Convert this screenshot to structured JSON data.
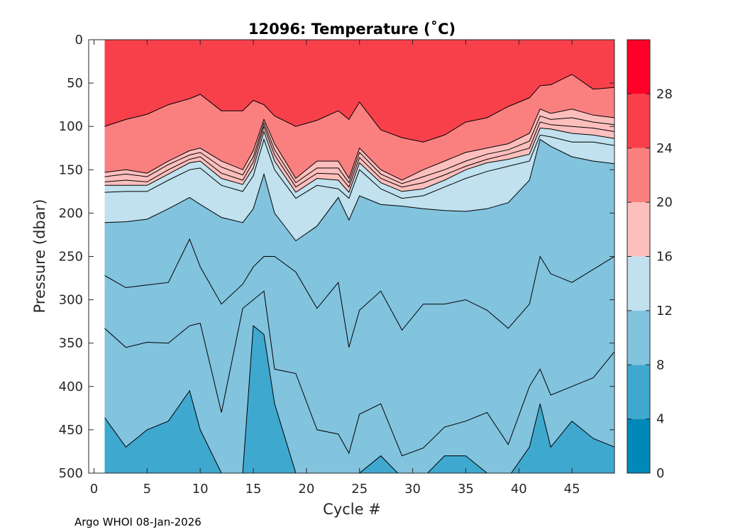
{
  "chart_data": {
    "type": "contour",
    "title": "12096:  Temperature (˚C)",
    "xlabel": "Cycle #",
    "ylabel": "Pressure (dbar)",
    "xlim": [
      -0.5,
      49
    ],
    "ylim": [
      0,
      500
    ],
    "y_reversed": true,
    "x_ticks": [
      0,
      5,
      10,
      15,
      20,
      25,
      30,
      35,
      40,
      45
    ],
    "x_tick_labels": [
      "0",
      "5",
      "10",
      "15",
      "20",
      "25",
      "30",
      "35",
      "40",
      "45"
    ],
    "y_ticks": [
      0,
      50,
      100,
      150,
      200,
      250,
      300,
      350,
      400,
      450,
      500
    ],
    "y_tick_labels": [
      "0",
      "50",
      "100",
      "150",
      "200",
      "250",
      "300",
      "350",
      "400",
      "450",
      "500"
    ],
    "colorbar": {
      "range": [
        0,
        32
      ],
      "levels": [
        0,
        4,
        8,
        12,
        16,
        20,
        24,
        28,
        32
      ],
      "colors": [
        "#0088b8",
        "#3fa8cf",
        "#82c3de",
        "#c0e1ed",
        "#fdbfbd",
        "#fa8080",
        "#f8404b",
        "#fe0028"
      ],
      "tick_values": [
        0,
        4,
        8,
        12,
        16,
        20,
        24,
        28
      ],
      "tick_labels": [
        "0",
        "4",
        "8",
        "12",
        "16",
        "20",
        "24",
        "28"
      ]
    },
    "cycles": [
      1,
      3,
      5,
      7,
      9,
      10,
      12,
      14,
      15,
      16,
      17,
      19,
      21,
      23,
      24,
      25,
      27,
      29,
      31,
      33,
      35,
      37,
      39,
      41,
      42,
      43,
      45,
      47,
      49
    ],
    "isotherms": [
      {
        "temp": 24,
        "depth": [
          100,
          92,
          86,
          75,
          68,
          63,
          82,
          82,
          70,
          75,
          88,
          100,
          93,
          82,
          92,
          72,
          104,
          113,
          118,
          110,
          95,
          90,
          77,
          67,
          53,
          52,
          40,
          57,
          55
        ]
      },
      {
        "temp": 20,
        "depth": [
          153,
          150,
          154,
          140,
          128,
          125,
          140,
          150,
          128,
          92,
          120,
          160,
          140,
          140,
          160,
          125,
          150,
          162,
          150,
          140,
          130,
          125,
          120,
          108,
          80,
          85,
          80,
          87,
          90
        ]
      },
      {
        "temp": 18,
        "depth": [
          158,
          155,
          158,
          144,
          133,
          130,
          147,
          156,
          135,
          96,
          127,
          165,
          148,
          148,
          165,
          130,
          155,
          166,
          158,
          150,
          140,
          132,
          127,
          117,
          88,
          92,
          90,
          95,
          98
        ]
      },
      {
        "temp": 17,
        "depth": [
          164,
          162,
          164,
          150,
          138,
          135,
          154,
          162,
          141,
          100,
          133,
          170,
          154,
          155,
          170,
          136,
          160,
          170,
          165,
          156,
          146,
          138,
          132,
          125,
          95,
          98,
          100,
          102,
          106
        ]
      },
      {
        "temp": 16,
        "depth": [
          168,
          168,
          168,
          155,
          142,
          140,
          160,
          167,
          148,
          106,
          140,
          176,
          160,
          162,
          176,
          142,
          165,
          175,
          172,
          162,
          150,
          142,
          138,
          132,
          102,
          103,
          108,
          110,
          114
        ]
      },
      {
        "temp": 14,
        "depth": [
          176,
          175,
          175,
          162,
          150,
          148,
          168,
          175,
          157,
          115,
          150,
          183,
          168,
          172,
          183,
          150,
          172,
          183,
          180,
          170,
          160,
          152,
          146,
          140,
          110,
          112,
          118,
          118,
          122
        ]
      },
      {
        "temp": 12,
        "depth": [
          211,
          210,
          207,
          195,
          182,
          190,
          205,
          211,
          195,
          155,
          200,
          232,
          215,
          182,
          208,
          180,
          190,
          192,
          195,
          197,
          198,
          195,
          188,
          162,
          115,
          123,
          135,
          140,
          143
        ]
      },
      {
        "temp": 10,
        "depth": [
          272,
          286,
          283,
          280,
          230,
          262,
          305,
          282,
          262,
          250,
          250,
          268,
          310,
          280,
          355,
          312,
          290,
          335,
          305,
          305,
          300,
          312,
          333,
          305,
          250,
          270,
          280,
          265,
          250
        ]
      },
      {
        "temp": 9,
        "depth": [
          333,
          355,
          349,
          350,
          330,
          327,
          430,
          310,
          300,
          290,
          380,
          385,
          450,
          455,
          477,
          432,
          420,
          480,
          471,
          447,
          440,
          430,
          467,
          400,
          380,
          410,
          400,
          390,
          360
        ]
      },
      {
        "temp": 8,
        "depth": [
          436,
          470,
          450,
          440,
          405,
          450,
          500,
          500,
          330,
          340,
          420,
          500,
          500,
          505,
          505,
          500,
          480,
          505,
          505,
          480,
          480,
          500,
          505,
          470,
          420,
          470,
          440,
          460,
          470
        ]
      }
    ],
    "x_axis_label_text": "Cycle #",
    "y_axis_label_text": "Pressure (dbar)"
  },
  "footer": {
    "text": "Argo WHOI 08-Jan-2026"
  }
}
